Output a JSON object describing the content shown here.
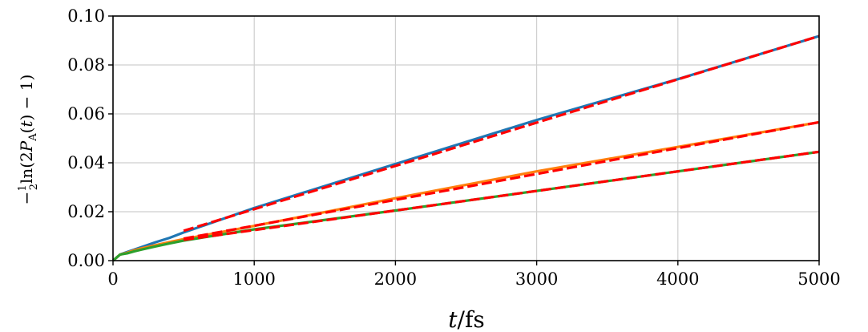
{
  "chart_data": {
    "type": "line",
    "xlabel_italic": "t",
    "xlabel_unit": "/fs",
    "ylabel_parts": {
      "minus": "−",
      "frac_num": "1",
      "frac_den": "2",
      "func": "ln(2",
      "var": "P",
      "sub": "A",
      "open": "(",
      "arg": "t",
      "close": ") − 1)"
    },
    "xlim": [
      0,
      5000
    ],
    "ylim": [
      0.0,
      0.1
    ],
    "xticks": [
      0,
      1000,
      2000,
      3000,
      4000,
      5000
    ],
    "yticks": [
      0.0,
      0.02,
      0.04,
      0.06,
      0.08,
      0.1
    ],
    "xtick_labels": [
      "0",
      "1000",
      "2000",
      "3000",
      "4000",
      "5000"
    ],
    "ytick_labels": [
      "0.00",
      "0.02",
      "0.04",
      "0.06",
      "0.08",
      "0.10"
    ],
    "grid": true,
    "series": [
      {
        "color": "#1f77b4",
        "points": [
          [
            0,
            0.0
          ],
          [
            50,
            0.0025
          ],
          [
            100,
            0.0035
          ],
          [
            150,
            0.0045
          ],
          [
            200,
            0.0055
          ],
          [
            300,
            0.0075
          ],
          [
            400,
            0.0093
          ],
          [
            500,
            0.0115
          ],
          [
            1000,
            0.0215
          ],
          [
            2000,
            0.0395
          ],
          [
            3000,
            0.0575
          ],
          [
            4000,
            0.0742
          ],
          [
            5000,
            0.0918
          ]
        ],
        "fit": [
          [
            500,
            0.0122
          ],
          [
            5000,
            0.0918
          ]
        ]
      },
      {
        "color": "#ff7f0e",
        "points": [
          [
            0,
            0.0
          ],
          [
            50,
            0.0025
          ],
          [
            100,
            0.0032
          ],
          [
            150,
            0.0042
          ],
          [
            200,
            0.005
          ],
          [
            300,
            0.0063
          ],
          [
            400,
            0.0076
          ],
          [
            500,
            0.0088
          ],
          [
            1000,
            0.0142
          ],
          [
            2000,
            0.0255
          ],
          [
            3000,
            0.0365
          ],
          [
            4000,
            0.0465
          ],
          [
            5000,
            0.0566
          ]
        ],
        "fit": [
          [
            500,
            0.009
          ],
          [
            5000,
            0.0566
          ]
        ]
      },
      {
        "color": "#2ca02c",
        "points": [
          [
            0,
            0.0
          ],
          [
            50,
            0.0025
          ],
          [
            100,
            0.003
          ],
          [
            150,
            0.0038
          ],
          [
            200,
            0.0045
          ],
          [
            300,
            0.0058
          ],
          [
            400,
            0.007
          ],
          [
            500,
            0.0082
          ],
          [
            1000,
            0.0128
          ],
          [
            2000,
            0.0205
          ],
          [
            3000,
            0.0285
          ],
          [
            4000,
            0.0365
          ],
          [
            5000,
            0.0445
          ]
        ],
        "fit": [
          [
            500,
            0.0085
          ],
          [
            5000,
            0.0445
          ]
        ]
      }
    ],
    "fit_color": "#ff0000"
  }
}
